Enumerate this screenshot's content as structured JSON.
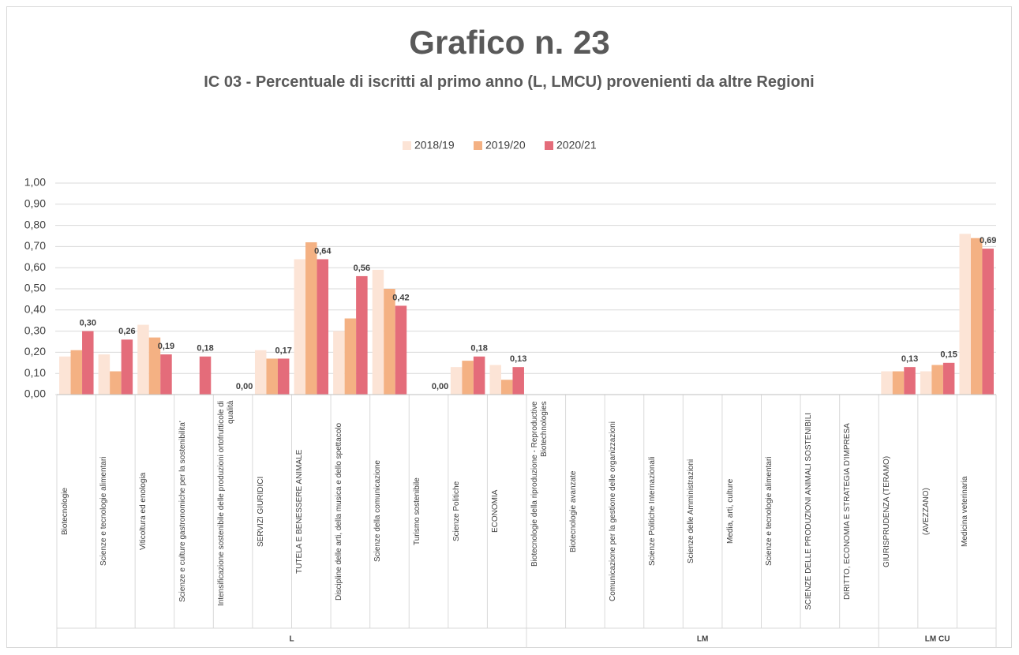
{
  "chart_data": {
    "type": "bar",
    "title": "Grafico n. 23",
    "subtitle": "IC 03 - Percentuale di iscritti al primo anno (L, LMCU) provenienti da altre Regioni",
    "groups": [
      {
        "label": "L",
        "categories": [
          "Biotecnologie",
          "Scienze e tecnologie alimentari",
          "Viticoltura ed enologia",
          "Scienze e culture gastronomiche per la sostenibilita'",
          "Intensificazione sostenibile delle produzioni ortofrutticole di qualità",
          "SERVIZI GIURIDICI",
          "TUTELA E BENESSERE ANIMALE",
          "Discipline delle arti, della musica e dello spettacolo",
          "Scienze della comunicazione",
          "Turismo sostenibile",
          "Scienze Politiche",
          "ECONOMIA"
        ]
      },
      {
        "label": "LM",
        "categories": [
          "Biotecnologie della riproduzione - Reproductive Biotechnologies",
          "Biotecnologie avanzate",
          "Comunicazione per la gestione delle organizzazioni",
          "Scienze Politiche  Internazionali",
          "Scienze delle Amministrazioni",
          "Media, arti, culture",
          "Scienze e tecnologie alimentari",
          "SCIENZE DELLE PRODUZIONI ANIMALI SOSTENIBILI",
          "DIRITTO, ECONOMIA E STRATEGIA D'IMPRESA"
        ]
      },
      {
        "label": "LM CU",
        "categories": [
          "GIURISPRUDENZA (TERAMO)",
          "(AVEZZANO)",
          "Medicina veterinaria"
        ]
      }
    ],
    "series": [
      {
        "name": "2018/19",
        "color": "#fce4d6",
        "values": [
          0.18,
          0.19,
          0.33,
          null,
          null,
          0.21,
          0.64,
          0.3,
          0.59,
          null,
          0.13,
          0.14,
          null,
          null,
          null,
          null,
          null,
          null,
          null,
          null,
          null,
          0.11,
          0.11,
          0.76
        ]
      },
      {
        "name": "2019/20",
        "color": "#f4b183",
        "values": [
          0.21,
          0.11,
          0.27,
          null,
          null,
          0.17,
          0.72,
          0.36,
          0.5,
          null,
          0.16,
          0.07,
          null,
          null,
          null,
          null,
          null,
          null,
          null,
          null,
          null,
          0.11,
          0.14,
          0.74
        ]
      },
      {
        "name": "2020/21",
        "color": "#e46c7a",
        "values": [
          0.3,
          0.26,
          0.19,
          0.18,
          0.0,
          0.17,
          0.64,
          0.56,
          0.42,
          0.0,
          0.18,
          0.13,
          null,
          null,
          null,
          null,
          null,
          null,
          null,
          null,
          null,
          0.13,
          0.15,
          0.69
        ],
        "value_labels": [
          "0,30",
          "0,26",
          "0,19",
          "0,18",
          "0,00",
          "0,17",
          "0,64",
          "0,56",
          "0,42",
          "0,00",
          "0,18",
          "0,13",
          null,
          null,
          null,
          null,
          null,
          null,
          null,
          null,
          null,
          "0,13",
          "0,15",
          "0,69"
        ]
      }
    ],
    "ylim": [
      0,
      1
    ],
    "yticks": [
      {
        "value": 0,
        "label": "0,00"
      },
      {
        "value": 0.1,
        "label": "0,10"
      },
      {
        "value": 0.2,
        "label": "0,20"
      },
      {
        "value": 0.3,
        "label": "0,30"
      },
      {
        "value": 0.4,
        "label": "0,40"
      },
      {
        "value": 0.5,
        "label": "0,50"
      },
      {
        "value": 0.6,
        "label": "0,60"
      },
      {
        "value": 0.7,
        "label": "0,70"
      },
      {
        "value": 0.8,
        "label": "0,80"
      },
      {
        "value": 0.9,
        "label": "0,90"
      },
      {
        "value": 1,
        "label": "1,00"
      }
    ],
    "grid": true,
    "legend": "top"
  }
}
